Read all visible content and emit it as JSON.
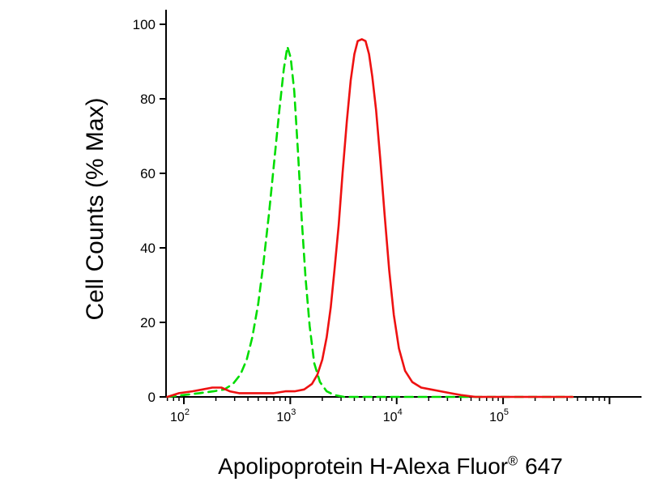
{
  "chart_data": {
    "type": "line",
    "chart_kind": "flow-cytometry-histogram",
    "title": "",
    "ylabel": "Cell Counts (% Max)",
    "xlabel": "Apolipoprotein H-Alexa Fluor® 647",
    "xlabel_parts": {
      "main": "Apolipoprotein H-Alexa Fluor",
      "registered": "®",
      "suffix": "647"
    },
    "x_scale": "log",
    "xlim": [
      68,
      2000000
    ],
    "ylim": [
      0,
      100
    ],
    "x_ticks": [
      100,
      1000,
      10000,
      100000
    ],
    "y_ticks": [
      0,
      20,
      40,
      60,
      80,
      100
    ],
    "grid": false,
    "legend": "none",
    "series": [
      {
        "name": "control-green-dashed",
        "color": "#00dd00",
        "style": "dashed",
        "peak_x": 950,
        "peak_y": 94,
        "points": [
          [
            70,
            0
          ],
          [
            100,
            0.5
          ],
          [
            140,
            1
          ],
          [
            190,
            1.5
          ],
          [
            240,
            2
          ],
          [
            290,
            3.5
          ],
          [
            340,
            6
          ],
          [
            390,
            10
          ],
          [
            440,
            16
          ],
          [
            500,
            25
          ],
          [
            560,
            36
          ],
          [
            630,
            49
          ],
          [
            700,
            62
          ],
          [
            790,
            77
          ],
          [
            870,
            88
          ],
          [
            940,
            94
          ],
          [
            1010,
            91
          ],
          [
            1090,
            82
          ],
          [
            1180,
            66
          ],
          [
            1280,
            48
          ],
          [
            1390,
            32
          ],
          [
            1520,
            19
          ],
          [
            1680,
            9
          ],
          [
            1900,
            4
          ],
          [
            2200,
            1.5
          ],
          [
            2600,
            0.5
          ],
          [
            3200,
            0
          ],
          [
            10000,
            0
          ],
          [
            450000,
            0
          ]
        ]
      },
      {
        "name": "apolipoprotein-h-red-solid",
        "color": "#ee1111",
        "style": "solid",
        "peak_x": 4700,
        "peak_y": 96,
        "points": [
          [
            70,
            0
          ],
          [
            90,
            1
          ],
          [
            120,
            1.5
          ],
          [
            150,
            2
          ],
          [
            185,
            2.5
          ],
          [
            225,
            2.5
          ],
          [
            270,
            1.5
          ],
          [
            330,
            1
          ],
          [
            420,
            1
          ],
          [
            550,
            1
          ],
          [
            700,
            1
          ],
          [
            900,
            1.5
          ],
          [
            1100,
            1.5
          ],
          [
            1350,
            2
          ],
          [
            1600,
            3.5
          ],
          [
            1800,
            6
          ],
          [
            2000,
            10
          ],
          [
            2200,
            16
          ],
          [
            2400,
            24
          ],
          [
            2600,
            34
          ],
          [
            2850,
            46
          ],
          [
            3100,
            60
          ],
          [
            3400,
            74
          ],
          [
            3700,
            85
          ],
          [
            4000,
            92
          ],
          [
            4300,
            95.5
          ],
          [
            4700,
            96
          ],
          [
            5100,
            95.5
          ],
          [
            5500,
            92
          ],
          [
            5900,
            86
          ],
          [
            6400,
            77
          ],
          [
            7000,
            64
          ],
          [
            7700,
            49
          ],
          [
            8500,
            34
          ],
          [
            9400,
            22
          ],
          [
            10500,
            13
          ],
          [
            12000,
            7
          ],
          [
            14000,
            4
          ],
          [
            17000,
            2.5
          ],
          [
            21000,
            2
          ],
          [
            26000,
            1.5
          ],
          [
            32000,
            1
          ],
          [
            40000,
            0.5
          ],
          [
            55000,
            0
          ],
          [
            450000,
            0
          ]
        ]
      }
    ]
  }
}
